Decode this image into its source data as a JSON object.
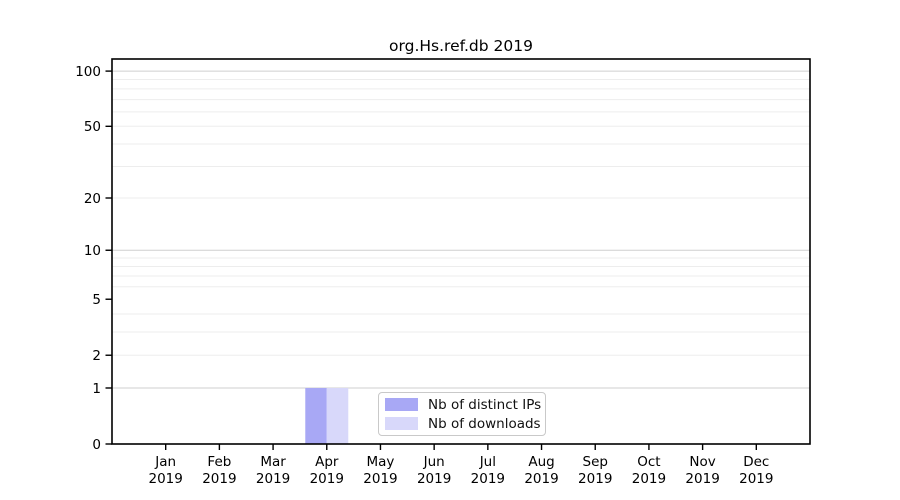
{
  "chart_data": {
    "type": "bar",
    "title": "org.Hs.ref.db 2019",
    "categories": [
      "Jan",
      "Feb",
      "Mar",
      "Apr",
      "May",
      "Jun",
      "Jul",
      "Aug",
      "Sep",
      "Oct",
      "Nov",
      "Dec"
    ],
    "category_year_label": "2019",
    "series": [
      {
        "name": "Nb of distinct IPs",
        "color": "#a8a8f5",
        "values": [
          0,
          0,
          0,
          1,
          0,
          0,
          0,
          0,
          0,
          0,
          0,
          0
        ]
      },
      {
        "name": "Nb of downloads",
        "color": "#d8d8fa",
        "values": [
          0,
          0,
          0,
          1,
          0,
          0,
          0,
          0,
          0,
          0,
          0,
          0
        ]
      }
    ],
    "xlabel": "",
    "ylabel": "",
    "y_axis": {
      "scale": "log1p",
      "tick_values": [
        0,
        1,
        2,
        5,
        10,
        20,
        50,
        100
      ],
      "major_grid_values": [
        1,
        10,
        100
      ],
      "minor_grid_values": [
        2,
        3,
        4,
        6,
        7,
        8,
        9,
        20,
        30,
        40,
        50,
        60,
        70,
        80,
        90
      ],
      "ylim": [
        0,
        116
      ]
    },
    "grid": true,
    "legend_position": "lower center"
  },
  "legend": {
    "entries": [
      "Nb of distinct IPs",
      "Nb of downloads"
    ]
  },
  "colors": {
    "background": "#ffffff",
    "axis": "#000000",
    "major_grid": "#cfcfcf",
    "minor_grid": "#ededed",
    "legend_border": "#c9c9c9",
    "bar_distinct_ips": "#a8a8f5",
    "bar_downloads": "#d8d8fa"
  }
}
